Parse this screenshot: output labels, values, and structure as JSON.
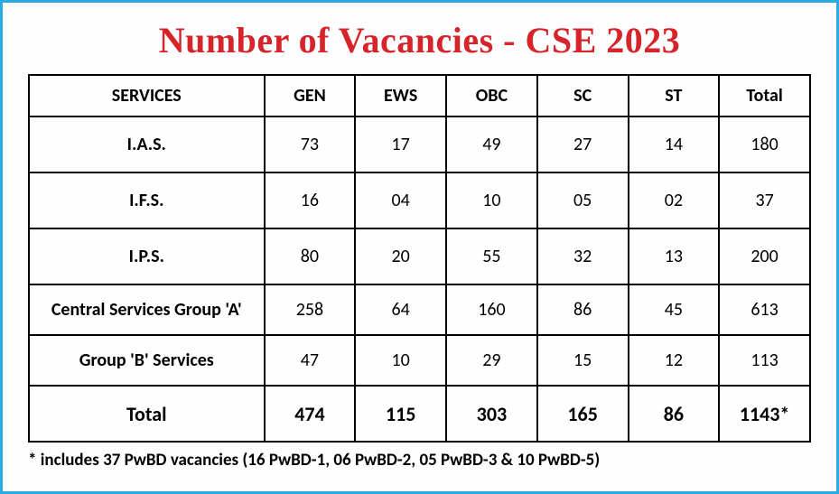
{
  "title": "Number of Vacancies - CSE 2023",
  "colors": {
    "border": "#29abe2",
    "title": "#d6252a",
    "grid": "#000000",
    "background": "#fefefe",
    "text": "#000000"
  },
  "table": {
    "type": "table",
    "columns": [
      "SERVICES",
      "GEN",
      "EWS",
      "OBC",
      "SC",
      "ST",
      "Total"
    ],
    "rows": [
      {
        "service": "I.A.S.",
        "gen": "73",
        "ews": "17",
        "obc": "49",
        "sc": "27",
        "st": "14",
        "total": "180"
      },
      {
        "service": "I.F.S.",
        "gen": "16",
        "ews": "04",
        "obc": "10",
        "sc": "05",
        "st": "02",
        "total": "37"
      },
      {
        "service": "I.P.S.",
        "gen": "80",
        "ews": "20",
        "obc": "55",
        "sc": "32",
        "st": "13",
        "total": "200"
      },
      {
        "service": "Central Services Group 'A'",
        "gen": "258",
        "ews": "64",
        "obc": "160",
        "sc": "86",
        "st": "45",
        "total": "613"
      },
      {
        "service": "Group 'B' Services",
        "gen": "47",
        "ews": "10",
        "obc": "29",
        "sc": "15",
        "st": "12",
        "total": "113"
      }
    ],
    "total_row": {
      "service": "Total",
      "gen": "474",
      "ews": "115",
      "obc": "303",
      "sc": "165",
      "st": "86",
      "total": "1143*"
    },
    "header_fontsize": 20,
    "cell_fontsize": 20,
    "total_fontsize": 22,
    "border_width": 2
  },
  "footnote": "* includes 37 PwBD vacancies (16 PwBD-1, 06 PwBD-2, 05  PwBD-3 & 10 PwBD-5)"
}
